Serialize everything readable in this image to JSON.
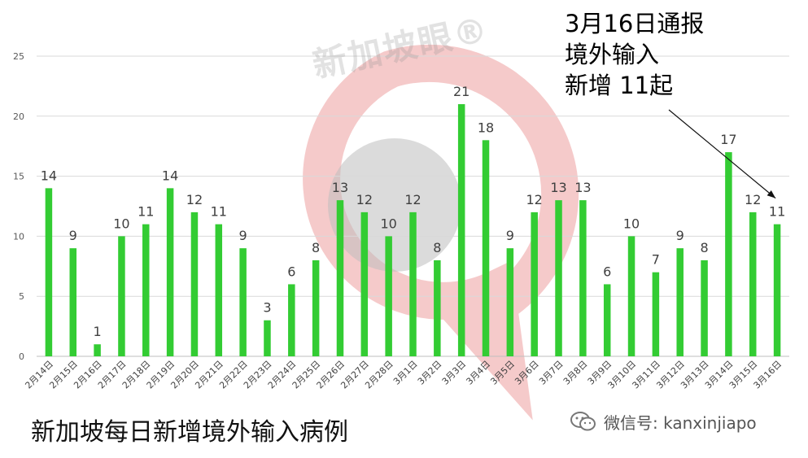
{
  "chart_data": {
    "type": "bar",
    "categories": [
      "2月14日",
      "2月15日",
      "2月16日",
      "2月17日",
      "2月18日",
      "2月19日",
      "2月20日",
      "2月21日",
      "2月22日",
      "2月23日",
      "2月24日",
      "2月25日",
      "2月26日",
      "2月27日",
      "2月28日",
      "3月1日",
      "3月2日",
      "3月3日",
      "3月4日",
      "3月5日",
      "3月6日",
      "3月7日",
      "3月8日",
      "3月9日",
      "3月10日",
      "3月11日",
      "3月12日",
      "3月13日",
      "3月14日",
      "3月15日",
      "3月16日"
    ],
    "values": [
      14,
      9,
      1,
      10,
      11,
      14,
      12,
      11,
      9,
      3,
      6,
      8,
      13,
      12,
      10,
      12,
      8,
      21,
      18,
      9,
      12,
      13,
      13,
      6,
      10,
      7,
      9,
      8,
      17,
      12,
      11
    ],
    "title": "新加坡每日新增境外输入病例",
    "xlabel": "",
    "ylabel": "",
    "ylim": [
      0,
      25
    ],
    "yticks": [
      0,
      5,
      10,
      15,
      20,
      25
    ],
    "grid": true,
    "bar_color": "#33cc33",
    "annotation": {
      "lines": [
        "3月16日通报",
        "境外输入",
        "新增 11起"
      ],
      "target_category": "3月16日"
    }
  },
  "watermark": {
    "text": "新加坡眼®",
    "ring_color": "#f2b8b8",
    "center_color": "#bdbdbd"
  },
  "wechat": {
    "label": "微信号: kanxinjiapo",
    "icon": "wechat-icon"
  }
}
